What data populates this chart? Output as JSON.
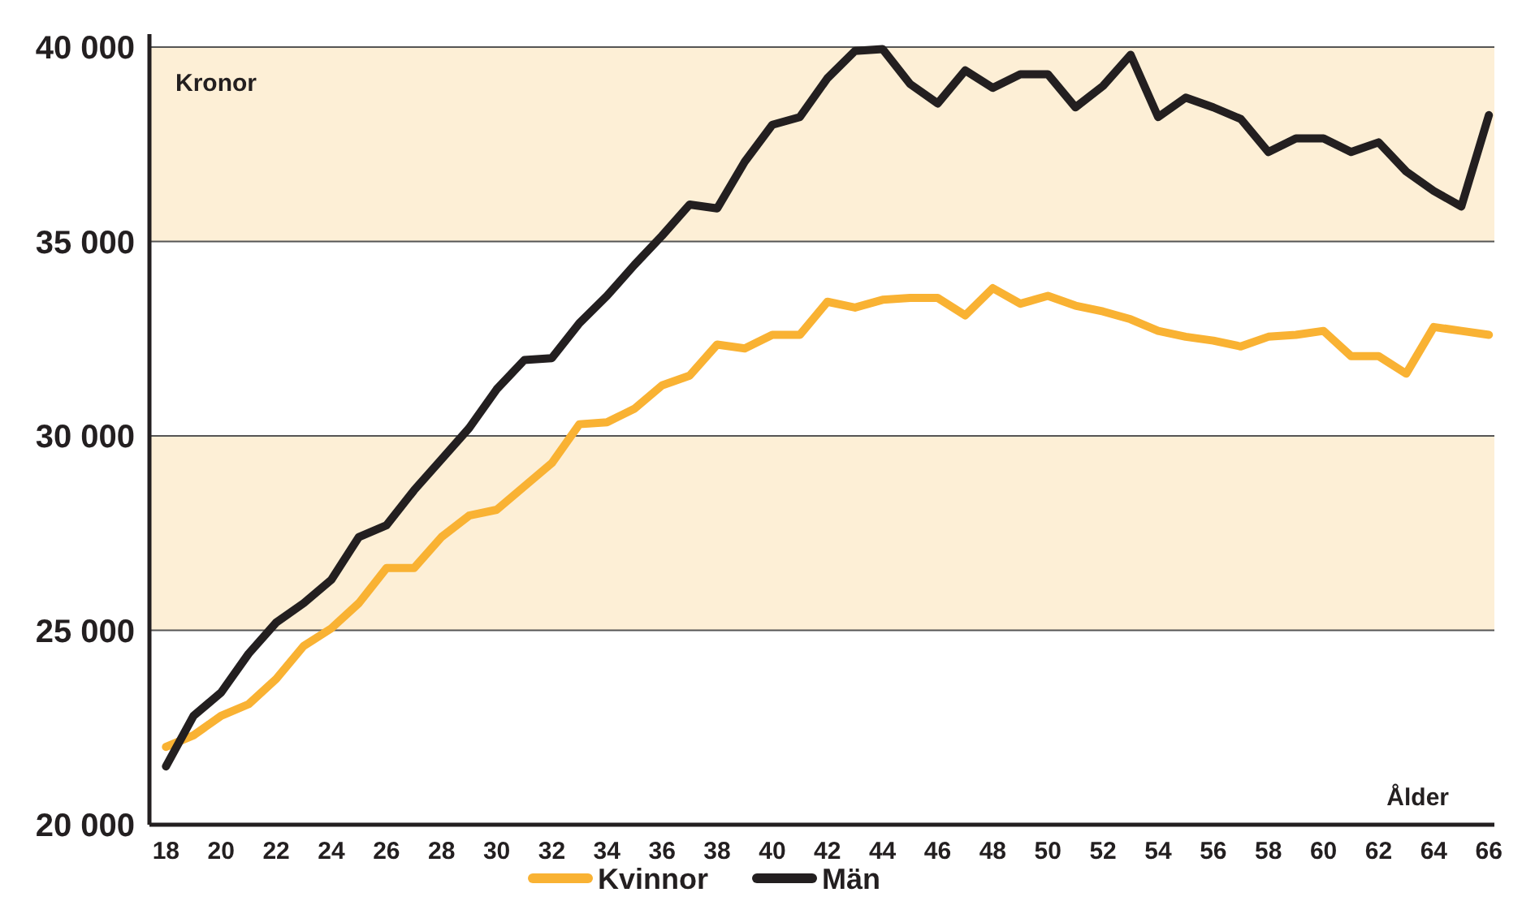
{
  "chart_data": {
    "type": "line",
    "xlabel": "Ålder",
    "ylabel": "Kronor",
    "x": [
      18,
      19,
      20,
      21,
      22,
      23,
      24,
      25,
      26,
      27,
      28,
      29,
      30,
      31,
      32,
      33,
      34,
      35,
      36,
      37,
      38,
      39,
      40,
      41,
      42,
      43,
      44,
      45,
      46,
      47,
      48,
      49,
      50,
      51,
      52,
      53,
      54,
      55,
      56,
      57,
      58,
      59,
      60,
      61,
      62,
      63,
      64,
      65,
      66
    ],
    "series": [
      {
        "name": "Kvinnor",
        "color": "#f9b233",
        "values": [
          22000,
          22300,
          22800,
          23100,
          23750,
          24600,
          25050,
          25700,
          26600,
          26600,
          27400,
          27950,
          28100,
          28700,
          29300,
          30300,
          30350,
          30700,
          31300,
          31550,
          32350,
          32250,
          32600,
          32600,
          33450,
          33300,
          33500,
          33550,
          33550,
          33100,
          33800,
          33400,
          33600,
          33350,
          33200,
          33000,
          32700,
          32550,
          32450,
          32300,
          32550,
          32600,
          32700,
          32050,
          32050,
          31600,
          32800,
          32700,
          32600
        ]
      },
      {
        "name": "Män",
        "color": "#231f20",
        "values": [
          21500,
          22800,
          23400,
          24400,
          25200,
          25700,
          26300,
          27400,
          27700,
          28600,
          29400,
          30200,
          31200,
          31950,
          32000,
          32900,
          33600,
          34400,
          35150,
          35950,
          35850,
          37050,
          38000,
          38200,
          39200,
          39900,
          39950,
          39050,
          38550,
          39400,
          38950,
          39300,
          39300,
          38450,
          39000,
          39800,
          38200,
          38700,
          38450,
          38150,
          37300,
          37650,
          37650,
          37300,
          37550,
          36800,
          36300,
          35900,
          38250
        ]
      }
    ],
    "xlim": [
      17.4,
      66.2
    ],
    "xticks": [
      18,
      20,
      22,
      24,
      26,
      28,
      30,
      32,
      34,
      36,
      38,
      40,
      42,
      44,
      46,
      48,
      50,
      52,
      54,
      56,
      58,
      60,
      62,
      64,
      66
    ],
    "ylim": [
      20000,
      40000
    ],
    "yticks": [
      {
        "value": 20000,
        "label": "20 000"
      },
      {
        "value": 25000,
        "label": "25 000"
      },
      {
        "value": 30000,
        "label": "30 000"
      },
      {
        "value": 35000,
        "label": "35 000"
      },
      {
        "value": 40000,
        "label": "40 000"
      }
    ],
    "bands": [
      {
        "axis": "y",
        "from": 25000,
        "to": 30000,
        "color": "#fdefd6"
      },
      {
        "axis": "y",
        "from": 35000,
        "to": 40000,
        "color": "#fdefd6"
      }
    ],
    "grid": "y",
    "legend": "bottom",
    "marker": "none",
    "line_style": "solid"
  }
}
